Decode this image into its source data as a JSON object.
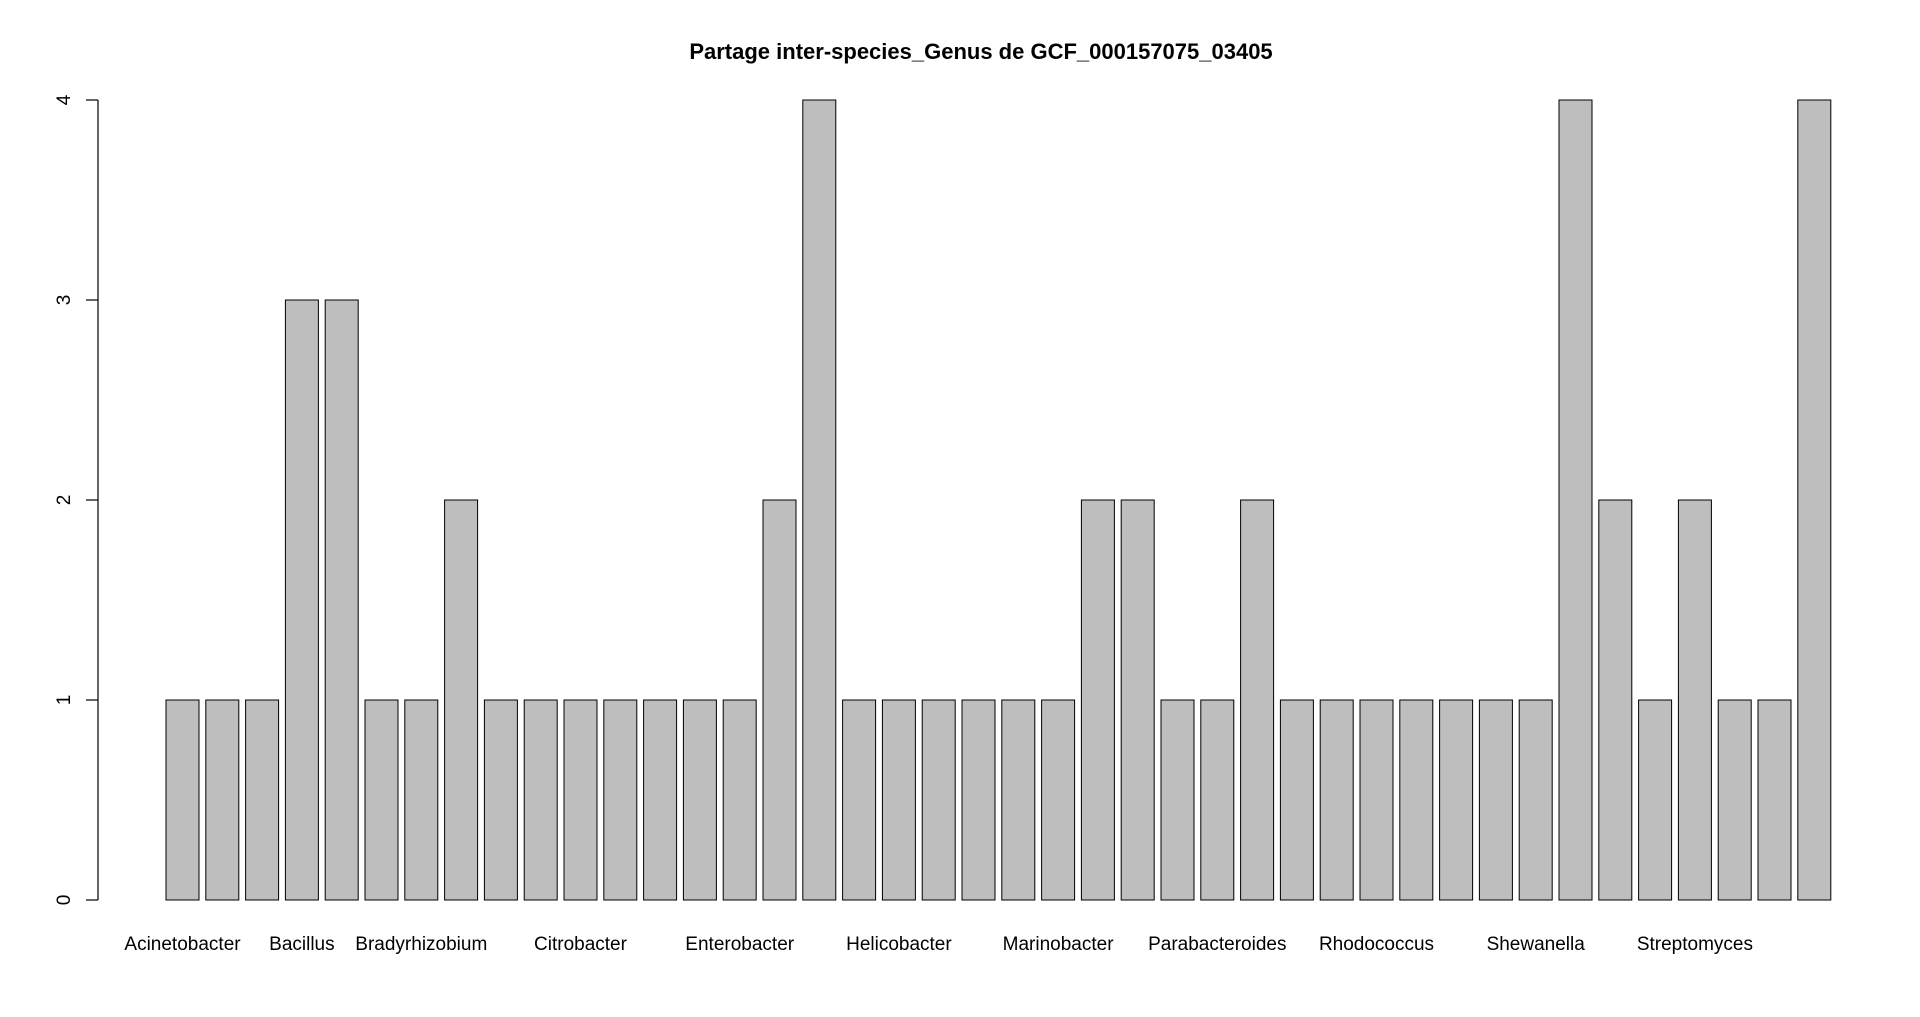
{
  "chart_data": {
    "type": "bar",
    "title": "Partage inter-species_Genus de GCF_000157075_03405",
    "xlabel": "",
    "ylabel": "",
    "ylim": [
      0,
      4
    ],
    "y_ticks": [
      0,
      1,
      2,
      3,
      4
    ],
    "bar_fill": "#bebebe",
    "bar_stroke": "#000000",
    "values": [
      1,
      1,
      1,
      3,
      3,
      1,
      1,
      2,
      1,
      1,
      1,
      1,
      1,
      1,
      1,
      2,
      4,
      1,
      1,
      1,
      1,
      1,
      1,
      2,
      2,
      1,
      1,
      2,
      1,
      1,
      1,
      1,
      1,
      1,
      1,
      4,
      2,
      1,
      2,
      1,
      1,
      4
    ],
    "shown_labels": [
      {
        "bar": 0,
        "text": "Acinetobacter"
      },
      {
        "bar": 3,
        "text": "Bacillus"
      },
      {
        "bar": 6,
        "text": "Bradyrhizobium"
      },
      {
        "bar": 10,
        "text": "Citrobacter"
      },
      {
        "bar": 14,
        "text": "Enterobacter"
      },
      {
        "bar": 18,
        "text": "Helicobacter"
      },
      {
        "bar": 22,
        "text": "Marinobacter"
      },
      {
        "bar": 26,
        "text": "Parabacteroides"
      },
      {
        "bar": 30,
        "text": "Rhodococcus"
      },
      {
        "bar": 34,
        "text": "Shewanella"
      },
      {
        "bar": 38,
        "text": "Streptomyces"
      }
    ]
  }
}
